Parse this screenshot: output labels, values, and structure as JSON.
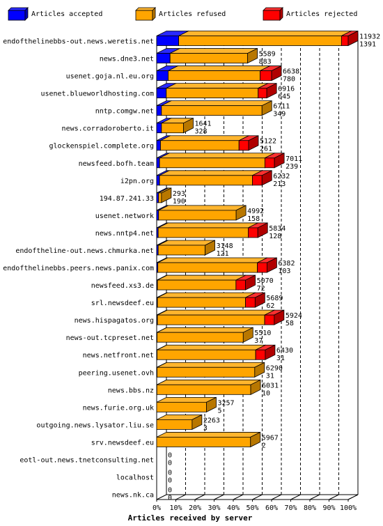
{
  "chart_data": {
    "type": "bar",
    "orientation": "horizontal",
    "stacked": true,
    "title": "",
    "xlabel": "Articles received by server",
    "ylabel": "",
    "xlim": [
      0,
      100
    ],
    "x_ticks": [
      "0%",
      "10%",
      "20%",
      "30%",
      "40%",
      "50%",
      "60%",
      "70%",
      "80%",
      "90%",
      "100%"
    ],
    "grid": "vertical dashed",
    "legend_position": "top",
    "series": [
      {
        "name": "Articles accepted",
        "color": "#0000ff"
      },
      {
        "name": "Articles refused",
        "color": "#ffa500"
      },
      {
        "name": "Articles rejected",
        "color": "#ff0000"
      }
    ],
    "rows": [
      {
        "server": "endofthelinebbs-out.news.weretis.net",
        "refused": 11932,
        "accepted": 1391,
        "pct": [
          11.5,
          85.0,
          3.5
        ]
      },
      {
        "server": "news.dne3.net",
        "refused": 5589,
        "accepted": 883,
        "pct": [
          7.0,
          40.5,
          0
        ]
      },
      {
        "server": "usenet.goja.nl.eu.org",
        "refused": 6638,
        "accepted": 780,
        "pct": [
          6.0,
          48.0,
          6.0
        ]
      },
      {
        "server": "usenet.blueworldhosting.com",
        "refused": 6916,
        "accepted": 645,
        "pct": [
          5.0,
          48.0,
          4.5
        ]
      },
      {
        "server": "nntp.comgw.net",
        "refused": 6711,
        "accepted": 349,
        "pct": [
          2.5,
          52.5,
          0
        ]
      },
      {
        "server": "news.corradoroberto.it",
        "refused": 1641,
        "accepted": 328,
        "pct": [
          2.5,
          11.5,
          0
        ]
      },
      {
        "server": "glockenspiel.complete.org",
        "refused": 5122,
        "accepted": 261,
        "pct": [
          2.0,
          41.0,
          5.0
        ]
      },
      {
        "server": "newsfeed.bofh.team",
        "refused": 7011,
        "accepted": 239,
        "pct": [
          1.5,
          55.0,
          5.0
        ]
      },
      {
        "server": "i2pn.org",
        "refused": 6232,
        "accepted": 213,
        "pct": [
          1.5,
          48.5,
          5.0
        ]
      },
      {
        "server": "194.87.241.33",
        "refused": 293,
        "accepted": 190,
        "pct": [
          1.0,
          1.5,
          0
        ]
      },
      {
        "server": "usenet.network",
        "refused": 4992,
        "accepted": 158,
        "pct": [
          1.0,
          40.5,
          0
        ]
      },
      {
        "server": "news.nntp4.net",
        "refused": 5834,
        "accepted": 128,
        "pct": [
          0.8,
          47.0,
          5.0
        ]
      },
      {
        "server": "endoftheline-out.news.chmurka.net",
        "refused": 3148,
        "accepted": 121,
        "pct": [
          0.8,
          24.5,
          0
        ]
      },
      {
        "server": "endofthelinebbs.peers.news.panix.com",
        "refused": 6382,
        "accepted": 103,
        "pct": [
          0.6,
          52.0,
          5.0
        ]
      },
      {
        "server": "newsfeed.xs3.de",
        "refused": 5070,
        "accepted": 72,
        "pct": [
          0.4,
          41.0,
          5.0
        ]
      },
      {
        "server": "srl.newsdeef.eu",
        "refused": 5689,
        "accepted": 62,
        "pct": [
          0.4,
          46.0,
          5.0
        ]
      },
      {
        "server": "news.hispagatos.org",
        "refused": 5924,
        "accepted": 58,
        "pct": [
          0.4,
          56.0,
          5.0
        ]
      },
      {
        "server": "news-out.tcpreset.net",
        "refused": 5510,
        "accepted": 37,
        "pct": [
          0.2,
          45.0,
          0
        ]
      },
      {
        "server": "news.netfront.net",
        "refused": 6430,
        "accepted": 31,
        "pct": [
          0.2,
          51.5,
          5.0
        ]
      },
      {
        "server": "peering.usenet.ovh",
        "refused": 6290,
        "accepted": 31,
        "pct": [
          0.2,
          51.0,
          0
        ]
      },
      {
        "server": "news.bbs.nz",
        "refused": 6031,
        "accepted": 10,
        "pct": [
          0.1,
          49.0,
          0
        ]
      },
      {
        "server": "news.furie.org.uk",
        "refused": 3257,
        "accepted": 5,
        "pct": [
          0,
          26.0,
          0
        ]
      },
      {
        "server": "outgoing.news.lysator.liu.se",
        "refused": 2263,
        "accepted": 3,
        "pct": [
          0,
          18.5,
          0
        ]
      },
      {
        "server": "srv.newsdeef.eu",
        "refused": 5967,
        "accepted": 2,
        "pct": [
          0,
          49.0,
          0
        ]
      },
      {
        "server": "eotl-out.news.tnetconsulting.net",
        "refused": 0,
        "accepted": 0,
        "pct": [
          0,
          0,
          0
        ]
      },
      {
        "server": "localhost",
        "refused": 0,
        "accepted": 0,
        "pct": [
          0,
          0,
          0
        ]
      },
      {
        "server": "news.nk.ca",
        "refused": 0,
        "accepted": 0,
        "pct": [
          0,
          0,
          0
        ]
      }
    ]
  }
}
